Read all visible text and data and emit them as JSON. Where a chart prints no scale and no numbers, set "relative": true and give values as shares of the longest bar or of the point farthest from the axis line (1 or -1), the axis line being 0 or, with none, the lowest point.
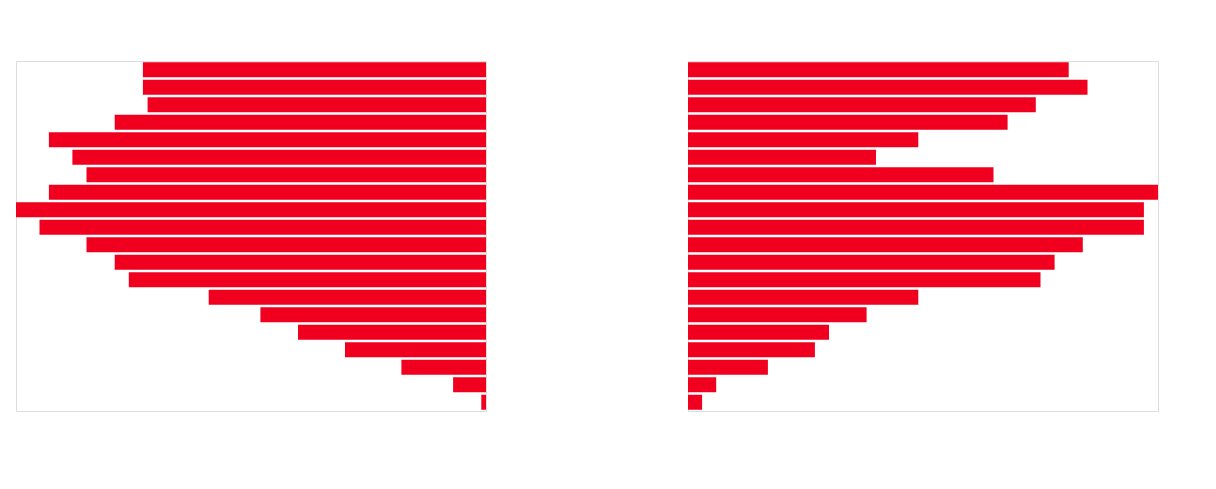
{
  "chart_data": [
    {
      "type": "bar",
      "orientation": "horizontal",
      "relative": true,
      "categories": [
        null,
        null,
        null,
        null,
        null,
        null,
        null,
        null,
        null,
        null,
        null,
        null,
        null,
        null,
        null,
        null,
        null,
        null,
        null,
        null
      ],
      "series": [
        {
          "color": "#f0001e",
          "values": [
            0.73,
            0.73,
            0.72,
            0.79,
            0.93,
            0.88,
            0.85,
            0.93,
            1,
            0.95,
            0.85,
            0.79,
            0.76,
            0.59,
            0.48,
            0.4,
            0.3,
            0.18,
            0.07,
            0.01
          ]
        }
      ]
    },
    {
      "type": "bar",
      "orientation": "horizontal",
      "relative": true,
      "categories": [
        null,
        null,
        null,
        null,
        null,
        null,
        null,
        null,
        null,
        null,
        null,
        null,
        null,
        null,
        null,
        null,
        null,
        null,
        null,
        null
      ],
      "series": [
        {
          "color": "#f0001e",
          "values": [
            0.81,
            0.85,
            0.74,
            0.68,
            0.49,
            0.4,
            0.65,
            1,
            0.97,
            0.97,
            0.84,
            0.78,
            0.75,
            0.49,
            0.38,
            0.3,
            0.27,
            0.17,
            0.06,
            0.03
          ]
        }
      ]
    }
  ]
}
